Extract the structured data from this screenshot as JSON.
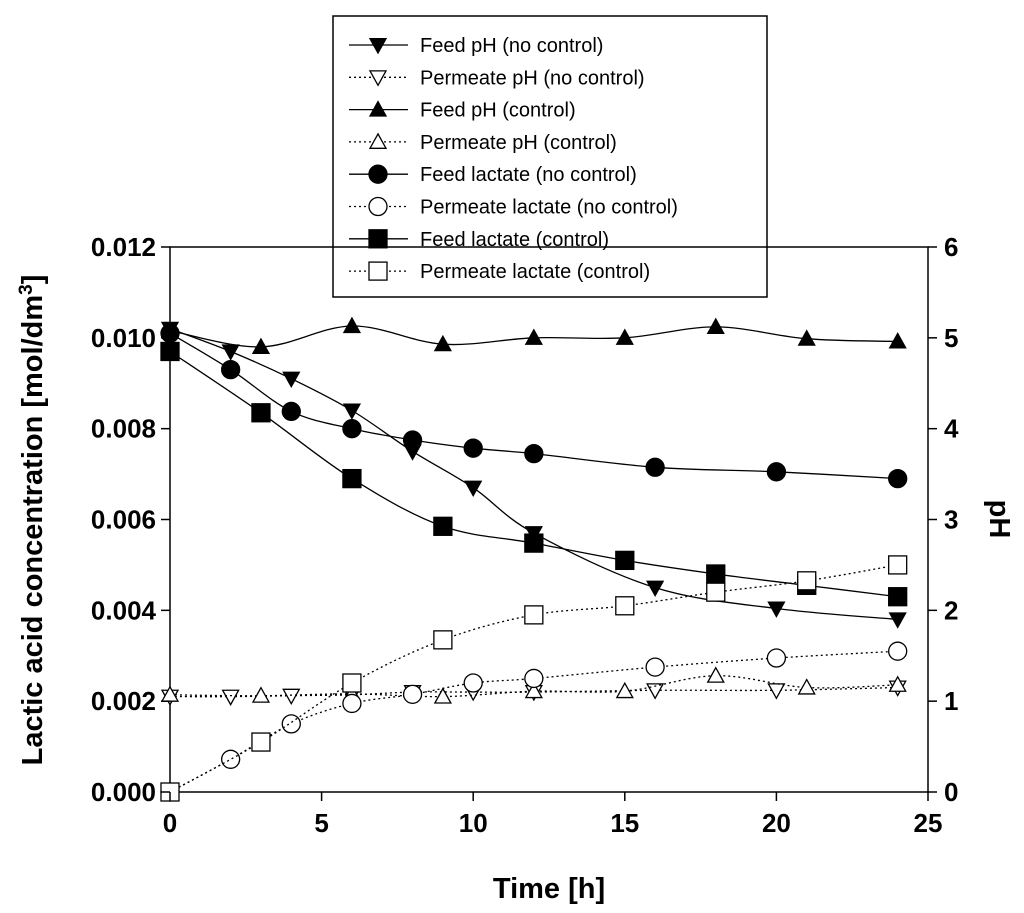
{
  "chart_data": {
    "type": "line",
    "xlabel": "Time [h]",
    "ylabel": "Lactic acid concentration [mol/dm",
    "ylabel_sup": "3",
    "ylabel_end": "]",
    "y2label": "pH",
    "xlim": [
      0,
      25
    ],
    "ylim": [
      0,
      0.012
    ],
    "y2lim": [
      0,
      6
    ],
    "x_ticks": [
      0,
      5,
      10,
      15,
      20,
      25
    ],
    "x_tick_labels": [
      "0",
      "5",
      "10",
      "15",
      "20",
      "25"
    ],
    "y_ticks": [
      0,
      0.002,
      0.004,
      0.006,
      0.008,
      0.01,
      0.012
    ],
    "y_tick_labels": [
      "0.000",
      "0.002",
      "0.004",
      "0.006",
      "0.008",
      "0.010",
      "0.012"
    ],
    "y2_ticks": [
      0,
      1,
      2,
      3,
      4,
      5,
      6
    ],
    "y2_tick_labels": [
      "0",
      "1",
      "2",
      "3",
      "4",
      "5",
      "6"
    ],
    "grid": false,
    "legend_position": "top-center",
    "series": [
      {
        "name": "Feed pH (no control)",
        "axis": "right",
        "line": "solid",
        "marker": "triangle-down",
        "filled": true,
        "x": [
          0,
          2,
          4,
          6,
          8,
          10,
          12,
          16,
          20,
          24
        ],
        "y": [
          5.1,
          4.85,
          4.55,
          4.2,
          3.75,
          3.35,
          2.85,
          2.25,
          2.02,
          1.9
        ]
      },
      {
        "name": "Permeate pH (no control)",
        "axis": "right",
        "line": "dotted",
        "marker": "triangle-down",
        "filled": false,
        "x": [
          0,
          2,
          4,
          6,
          8,
          10,
          12,
          16,
          20,
          24
        ],
        "y": [
          1.05,
          1.05,
          1.06,
          1.07,
          1.1,
          1.1,
          1.1,
          1.12,
          1.12,
          1.15
        ]
      },
      {
        "name": "Feed pH (control)",
        "axis": "right",
        "line": "solid",
        "marker": "triangle-up",
        "filled": true,
        "x": [
          0,
          3,
          6,
          9,
          12,
          15,
          18,
          21,
          24
        ],
        "y": [
          5.08,
          4.9,
          5.13,
          4.93,
          5.0,
          5.0,
          5.12,
          4.99,
          4.96
        ]
      },
      {
        "name": "Permeate pH (control)",
        "axis": "right",
        "line": "dotted",
        "marker": "triangle-up",
        "filled": false,
        "x": [
          0,
          3,
          6,
          9,
          12,
          15,
          18,
          21,
          24
        ],
        "y": [
          1.07,
          1.06,
          1.08,
          1.05,
          1.11,
          1.11,
          1.28,
          1.15,
          1.18
        ]
      },
      {
        "name": "Feed lactate (no control)",
        "axis": "left",
        "line": "solid",
        "marker": "circle",
        "filled": true,
        "x": [
          0,
          2,
          4,
          6,
          8,
          10,
          12,
          16,
          20,
          24
        ],
        "y": [
          0.0101,
          0.0093,
          0.00838,
          0.008,
          0.00775,
          0.00757,
          0.00745,
          0.00715,
          0.00705,
          0.0069
        ]
      },
      {
        "name": "Permeate lactate (no control)",
        "axis": "left",
        "line": "dotted",
        "marker": "circle",
        "filled": false,
        "x": [
          0,
          2,
          4,
          6,
          8,
          10,
          12,
          16,
          20,
          24
        ],
        "y": [
          0.0,
          0.00072,
          0.0015,
          0.00195,
          0.00215,
          0.0024,
          0.0025,
          0.00275,
          0.00295,
          0.0031
        ]
      },
      {
        "name": "Feed lactate (control)",
        "axis": "left",
        "line": "solid",
        "marker": "square",
        "filled": true,
        "x": [
          0,
          3,
          6,
          9,
          12,
          15,
          18,
          21,
          24
        ],
        "y": [
          0.0097,
          0.00835,
          0.0069,
          0.00585,
          0.00548,
          0.0051,
          0.0048,
          0.00455,
          0.0043
        ]
      },
      {
        "name": "Permeate lactate (control)",
        "axis": "left",
        "line": "dotted",
        "marker": "square",
        "filled": false,
        "x": [
          0,
          3,
          6,
          9,
          12,
          15,
          18,
          21,
          24
        ],
        "y": [
          0.0,
          0.0011,
          0.0024,
          0.00335,
          0.0039,
          0.0041,
          0.0044,
          0.00465,
          0.005
        ]
      }
    ]
  }
}
